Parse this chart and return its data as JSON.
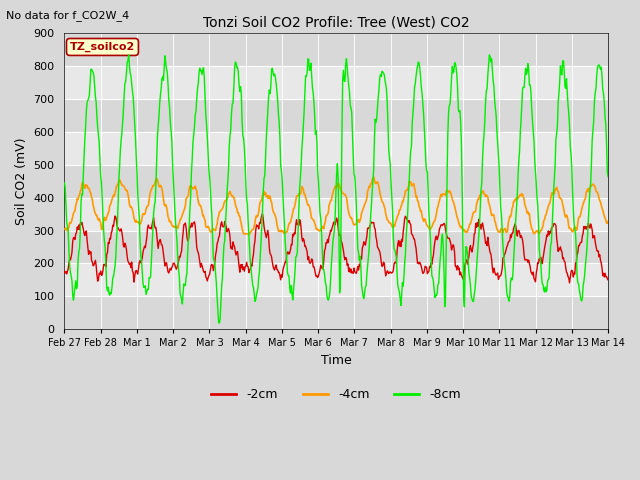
{
  "title": "Tonzi Soil CO2 Profile: Tree (West) CO2",
  "no_data_label": "No data for f_CO2W_4",
  "ylabel": "Soil CO2 (mV)",
  "xlabel": "Time",
  "ylim": [
    0,
    900
  ],
  "yticks": [
    0,
    100,
    200,
    300,
    400,
    500,
    600,
    700,
    800,
    900
  ],
  "x_tick_labels": [
    "Feb 27",
    "Feb 28",
    "Mar 1",
    "Mar 2",
    "Mar 3",
    "Mar 4",
    "Mar 5",
    "Mar 6",
    "Mar 7",
    "Mar 8",
    "Mar 9",
    "Mar 10",
    "Mar 11",
    "Mar 12",
    "Mar 13",
    "Mar 14"
  ],
  "line_colors": {
    "2cm": "#dd0000",
    "4cm": "#ff9900",
    "8cm": "#00ee00"
  },
  "line_labels": {
    "2cm": "-2cm",
    "4cm": "-4cm",
    "8cm": "-8cm"
  },
  "legend_label": "TZ_soilco2",
  "legend_color": "#aa0000",
  "legend_bg": "#ffffcc",
  "legend_border": "#aa0000",
  "background_color": "#d8d8d8",
  "plot_bg": "#e8e8e8",
  "alt_band_color": "#d0d0d0",
  "figsize": [
    6.4,
    4.8
  ],
  "dpi": 100
}
